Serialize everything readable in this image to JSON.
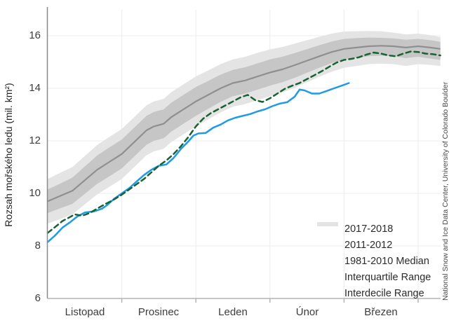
{
  "page": {
    "background": "#ffffff"
  },
  "y_axis": {
    "title": "Rozsah mořského ledu (mil. km²)",
    "tick_labels": [
      "16",
      "14",
      "12",
      "10",
      "8",
      "6"
    ]
  },
  "x_axis": {
    "month_labels": [
      "Listopad",
      "Prosinec",
      "Leden",
      "Únor",
      "Březen"
    ]
  },
  "legend": {
    "items": [
      {
        "label": "2017-2018",
        "style": "solid",
        "weight": "thin",
        "color": "#1e9be4"
      },
      {
        "label": "2011-2012",
        "style": "dashed",
        "weight": "thin",
        "color": "#186232"
      },
      {
        "label": "1981-2010 Median",
        "style": "solid",
        "weight": "thin",
        "color": "#8f8f8f"
      },
      {
        "label": "Interquartile Range",
        "style": "solid",
        "weight": "thick",
        "color": "#c6c6c6"
      },
      {
        "label": "Interdecile Range",
        "style": "solid",
        "weight": "thick",
        "color": "#e4e4e4"
      }
    ]
  },
  "credit": {
    "text": "National Snow and Ice Data Center, University of Colorado Boulder"
  },
  "chart_data": {
    "type": "line",
    "title": "",
    "ylabel": "Rozsah mořského ledu (mil. km²)",
    "ylim": [
      6,
      17
    ],
    "yticks": [
      8,
      10,
      12,
      14,
      16
    ],
    "grid": true,
    "legend_position": "inside-bottom-right",
    "x_unit": "days from 1 November (30-day months on axis)",
    "x_month_boundaries": [
      30,
      60,
      90,
      120,
      150
    ],
    "month_labels": [
      "Listopad",
      "Prosinec",
      "Leden",
      "Únor",
      "Březen"
    ],
    "band_days": [
      0,
      5,
      10,
      15,
      20,
      25,
      30,
      35,
      40,
      43,
      47,
      50,
      55,
      60,
      65,
      70,
      75,
      80,
      85,
      90,
      95,
      100,
      105,
      110,
      115,
      120,
      125,
      130,
      135,
      140,
      145,
      150,
      155,
      159
    ],
    "median_1981_2010": [
      9.7,
      9.9,
      10.1,
      10.5,
      10.9,
      11.2,
      11.5,
      11.95,
      12.4,
      12.55,
      12.65,
      12.9,
      13.2,
      13.5,
      13.75,
      14.0,
      14.2,
      14.3,
      14.45,
      14.6,
      14.72,
      14.88,
      15.05,
      15.22,
      15.38,
      15.5,
      15.55,
      15.6,
      15.62,
      15.6,
      15.55,
      15.6,
      15.55,
      15.5
    ],
    "interquartile_upper": [
      10.15,
      10.37,
      10.6,
      11.02,
      11.44,
      11.75,
      12.05,
      12.5,
      12.95,
      13.1,
      13.2,
      13.45,
      13.75,
      14.05,
      14.28,
      14.52,
      14.7,
      14.8,
      14.95,
      15.1,
      15.2,
      15.34,
      15.49,
      15.64,
      15.78,
      15.88,
      15.91,
      15.93,
      15.92,
      15.9,
      15.85,
      15.88,
      15.83,
      15.77
    ],
    "interquartile_lower": [
      9.25,
      9.43,
      9.6,
      9.98,
      10.36,
      10.65,
      10.95,
      11.4,
      11.85,
      12.0,
      12.1,
      12.35,
      12.65,
      12.95,
      13.22,
      13.48,
      13.7,
      13.8,
      13.95,
      14.1,
      14.23,
      14.4,
      14.59,
      14.78,
      14.96,
      15.1,
      15.16,
      15.22,
      15.24,
      15.22,
      15.15,
      15.2,
      15.13,
      15.08
    ],
    "interdecile_upper": [
      10.55,
      10.78,
      11.0,
      11.42,
      11.84,
      12.15,
      12.45,
      12.9,
      13.35,
      13.5,
      13.6,
      13.85,
      14.15,
      14.45,
      14.68,
      14.92,
      15.1,
      15.2,
      15.35,
      15.48,
      15.57,
      15.7,
      15.83,
      15.96,
      16.08,
      16.16,
      16.17,
      16.18,
      16.17,
      16.12,
      16.05,
      16.08,
      16.02,
      15.95
    ],
    "interdecile_lower": [
      8.85,
      9.02,
      9.2,
      9.58,
      9.96,
      10.25,
      10.55,
      11.0,
      11.45,
      11.6,
      11.7,
      11.95,
      12.25,
      12.55,
      12.82,
      13.08,
      13.3,
      13.4,
      13.55,
      13.7,
      13.84,
      14.02,
      14.23,
      14.44,
      14.63,
      14.78,
      14.85,
      14.92,
      14.94,
      14.92,
      14.85,
      14.92,
      14.89,
      14.85
    ],
    "series": [
      {
        "name": "2017-2018",
        "color": "#1e9be4",
        "dash": "solid",
        "points": [
          [
            0,
            8.15
          ],
          [
            3,
            8.4
          ],
          [
            6,
            8.7
          ],
          [
            9,
            8.9
          ],
          [
            12,
            9.12
          ],
          [
            15,
            9.27
          ],
          [
            19,
            9.32
          ],
          [
            22,
            9.42
          ],
          [
            24,
            9.55
          ],
          [
            27,
            9.8
          ],
          [
            30,
            10.0
          ],
          [
            33,
            10.2
          ],
          [
            36,
            10.45
          ],
          [
            39,
            10.7
          ],
          [
            42,
            10.9
          ],
          [
            45,
            11.05
          ],
          [
            48,
            11.1
          ],
          [
            51,
            11.35
          ],
          [
            54,
            11.7
          ],
          [
            57,
            11.98
          ],
          [
            59,
            12.2
          ],
          [
            61,
            12.28
          ],
          [
            64,
            12.3
          ],
          [
            67,
            12.5
          ],
          [
            70,
            12.62
          ],
          [
            73,
            12.78
          ],
          [
            76,
            12.88
          ],
          [
            79,
            12.95
          ],
          [
            82,
            13.02
          ],
          [
            85,
            13.12
          ],
          [
            88,
            13.2
          ],
          [
            91,
            13.32
          ],
          [
            94,
            13.42
          ],
          [
            97,
            13.47
          ],
          [
            100,
            13.68
          ],
          [
            102,
            13.95
          ],
          [
            104,
            13.92
          ],
          [
            107,
            13.8
          ],
          [
            110,
            13.8
          ],
          [
            113,
            13.9
          ],
          [
            116,
            14.0
          ],
          [
            119,
            14.1
          ],
          [
            122,
            14.2
          ]
        ]
      },
      {
        "name": "2011-2012",
        "color": "#186232",
        "dash": "dashed",
        "points": [
          [
            0,
            8.5
          ],
          [
            3,
            8.72
          ],
          [
            6,
            8.95
          ],
          [
            9,
            9.1
          ],
          [
            11,
            9.2
          ],
          [
            14,
            9.15
          ],
          [
            17,
            9.25
          ],
          [
            20,
            9.42
          ],
          [
            23,
            9.58
          ],
          [
            26,
            9.72
          ],
          [
            30,
            9.95
          ],
          [
            33,
            10.15
          ],
          [
            36,
            10.35
          ],
          [
            39,
            10.55
          ],
          [
            42,
            10.8
          ],
          [
            45,
            11.05
          ],
          [
            48,
            11.25
          ],
          [
            51,
            11.5
          ],
          [
            54,
            11.8
          ],
          [
            57,
            12.15
          ],
          [
            60,
            12.55
          ],
          [
            63,
            12.85
          ],
          [
            66,
            13.05
          ],
          [
            69,
            13.2
          ],
          [
            72,
            13.35
          ],
          [
            75,
            13.5
          ],
          [
            78,
            13.65
          ],
          [
            81,
            13.75
          ],
          [
            84,
            13.55
          ],
          [
            87,
            13.48
          ],
          [
            90,
            13.62
          ],
          [
            93,
            13.8
          ],
          [
            96,
            13.98
          ],
          [
            99,
            14.1
          ],
          [
            102,
            14.2
          ],
          [
            105,
            14.35
          ],
          [
            108,
            14.5
          ],
          [
            111,
            14.65
          ],
          [
            114,
            14.82
          ],
          [
            117,
            14.98
          ],
          [
            120,
            15.08
          ],
          [
            123,
            15.12
          ],
          [
            126,
            15.18
          ],
          [
            129,
            15.28
          ],
          [
            132,
            15.36
          ],
          [
            135,
            15.32
          ],
          [
            138,
            15.25
          ],
          [
            141,
            15.22
          ],
          [
            144,
            15.32
          ],
          [
            147,
            15.4
          ],
          [
            150,
            15.38
          ],
          [
            153,
            15.32
          ],
          [
            156,
            15.3
          ],
          [
            159,
            15.25
          ]
        ]
      }
    ],
    "colors": {
      "grid": "#ececec",
      "interdecile": "#e4e4e4",
      "interquartile": "#c6c6c6",
      "median": "#8f8f8f",
      "axis_left": "#8a8a8a",
      "axis_bottom": "#b3b3b3"
    }
  }
}
